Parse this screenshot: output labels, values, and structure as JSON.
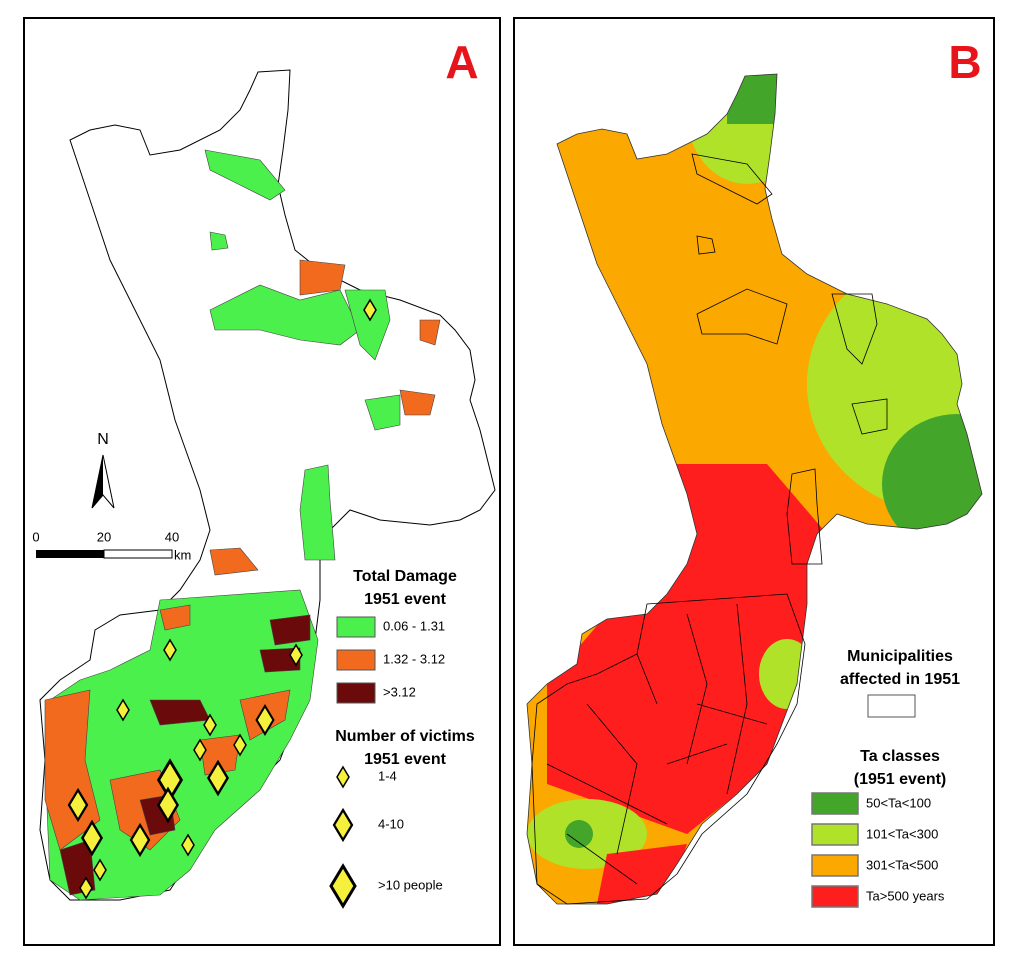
{
  "panels": [
    {
      "label": "A",
      "north": "N",
      "scale": {
        "ticks": [
          0,
          20,
          40
        ],
        "unit": "km"
      },
      "legend_damage": {
        "title": [
          "Total Damage",
          "1951 event"
        ],
        "items": [
          "0.06 - 1.31",
          "1.32 - 3.12",
          ">3.12"
        ]
      },
      "legend_victims": {
        "title": [
          "Number of victims",
          "1951 event"
        ],
        "items": [
          "1-4",
          "4-10",
          ">10 people"
        ]
      }
    },
    {
      "label": "B",
      "legend_municipalities": {
        "title": [
          "Municipalities",
          "affected in 1951"
        ]
      },
      "legend_ta": {
        "title": [
          "Ta classes",
          "(1951 event)"
        ],
        "items": [
          "50<Ta<100",
          "101<Ta<300",
          "301<Ta<500",
          "Ta>500 years"
        ]
      }
    }
  ]
}
